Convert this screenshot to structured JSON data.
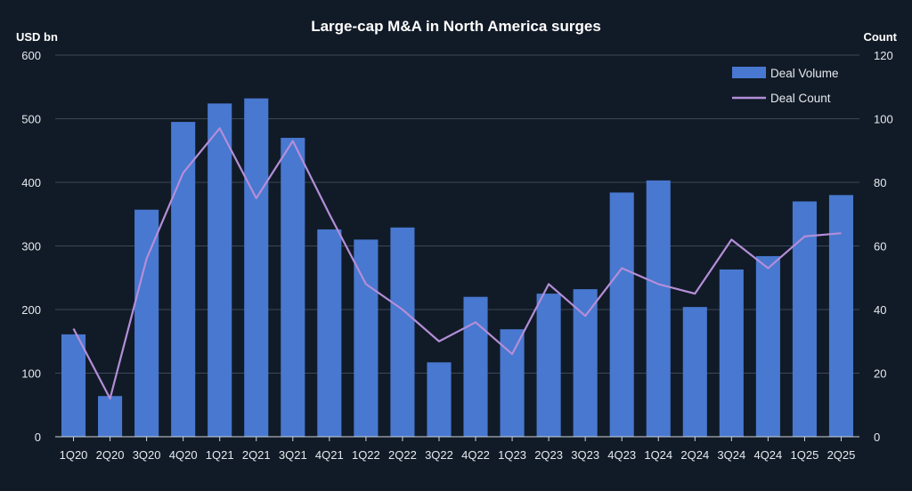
{
  "chart_data": {
    "type": "bar",
    "title": "Large-cap M&A in North America surges",
    "ylabel_left": "USD bn",
    "ylabel_right": "Count",
    "categories": [
      "1Q20",
      "2Q20",
      "3Q20",
      "4Q20",
      "1Q21",
      "2Q21",
      "3Q21",
      "4Q21",
      "1Q22",
      "2Q22",
      "3Q22",
      "4Q22",
      "1Q23",
      "2Q23",
      "3Q23",
      "4Q23",
      "1Q24",
      "2Q24",
      "3Q24",
      "4Q24",
      "1Q25",
      "2Q25"
    ],
    "series": [
      {
        "name": "Deal Volume",
        "type": "bar",
        "axis": "left",
        "color": "#4878d0",
        "values": [
          161,
          64,
          357,
          495,
          524,
          532,
          470,
          326,
          310,
          329,
          117,
          220,
          169,
          225,
          232,
          384,
          403,
          204,
          263,
          284,
          370,
          380
        ]
      },
      {
        "name": "Deal Count",
        "type": "line",
        "axis": "right",
        "color": "#b48ed8",
        "values": [
          34,
          12,
          56,
          83,
          97,
          75,
          93,
          70,
          48,
          40,
          30,
          36,
          26,
          48,
          38,
          53,
          48,
          45,
          62,
          53,
          63,
          64
        ]
      }
    ],
    "ylim_left": [
      0,
      600
    ],
    "yticks_left": [
      0,
      100,
      200,
      300,
      400,
      500,
      600
    ],
    "ylim_right": [
      0,
      120
    ],
    "yticks_right": [
      0,
      20,
      40,
      60,
      80,
      100,
      120
    ],
    "grid": true,
    "legend_position": "top-right"
  }
}
